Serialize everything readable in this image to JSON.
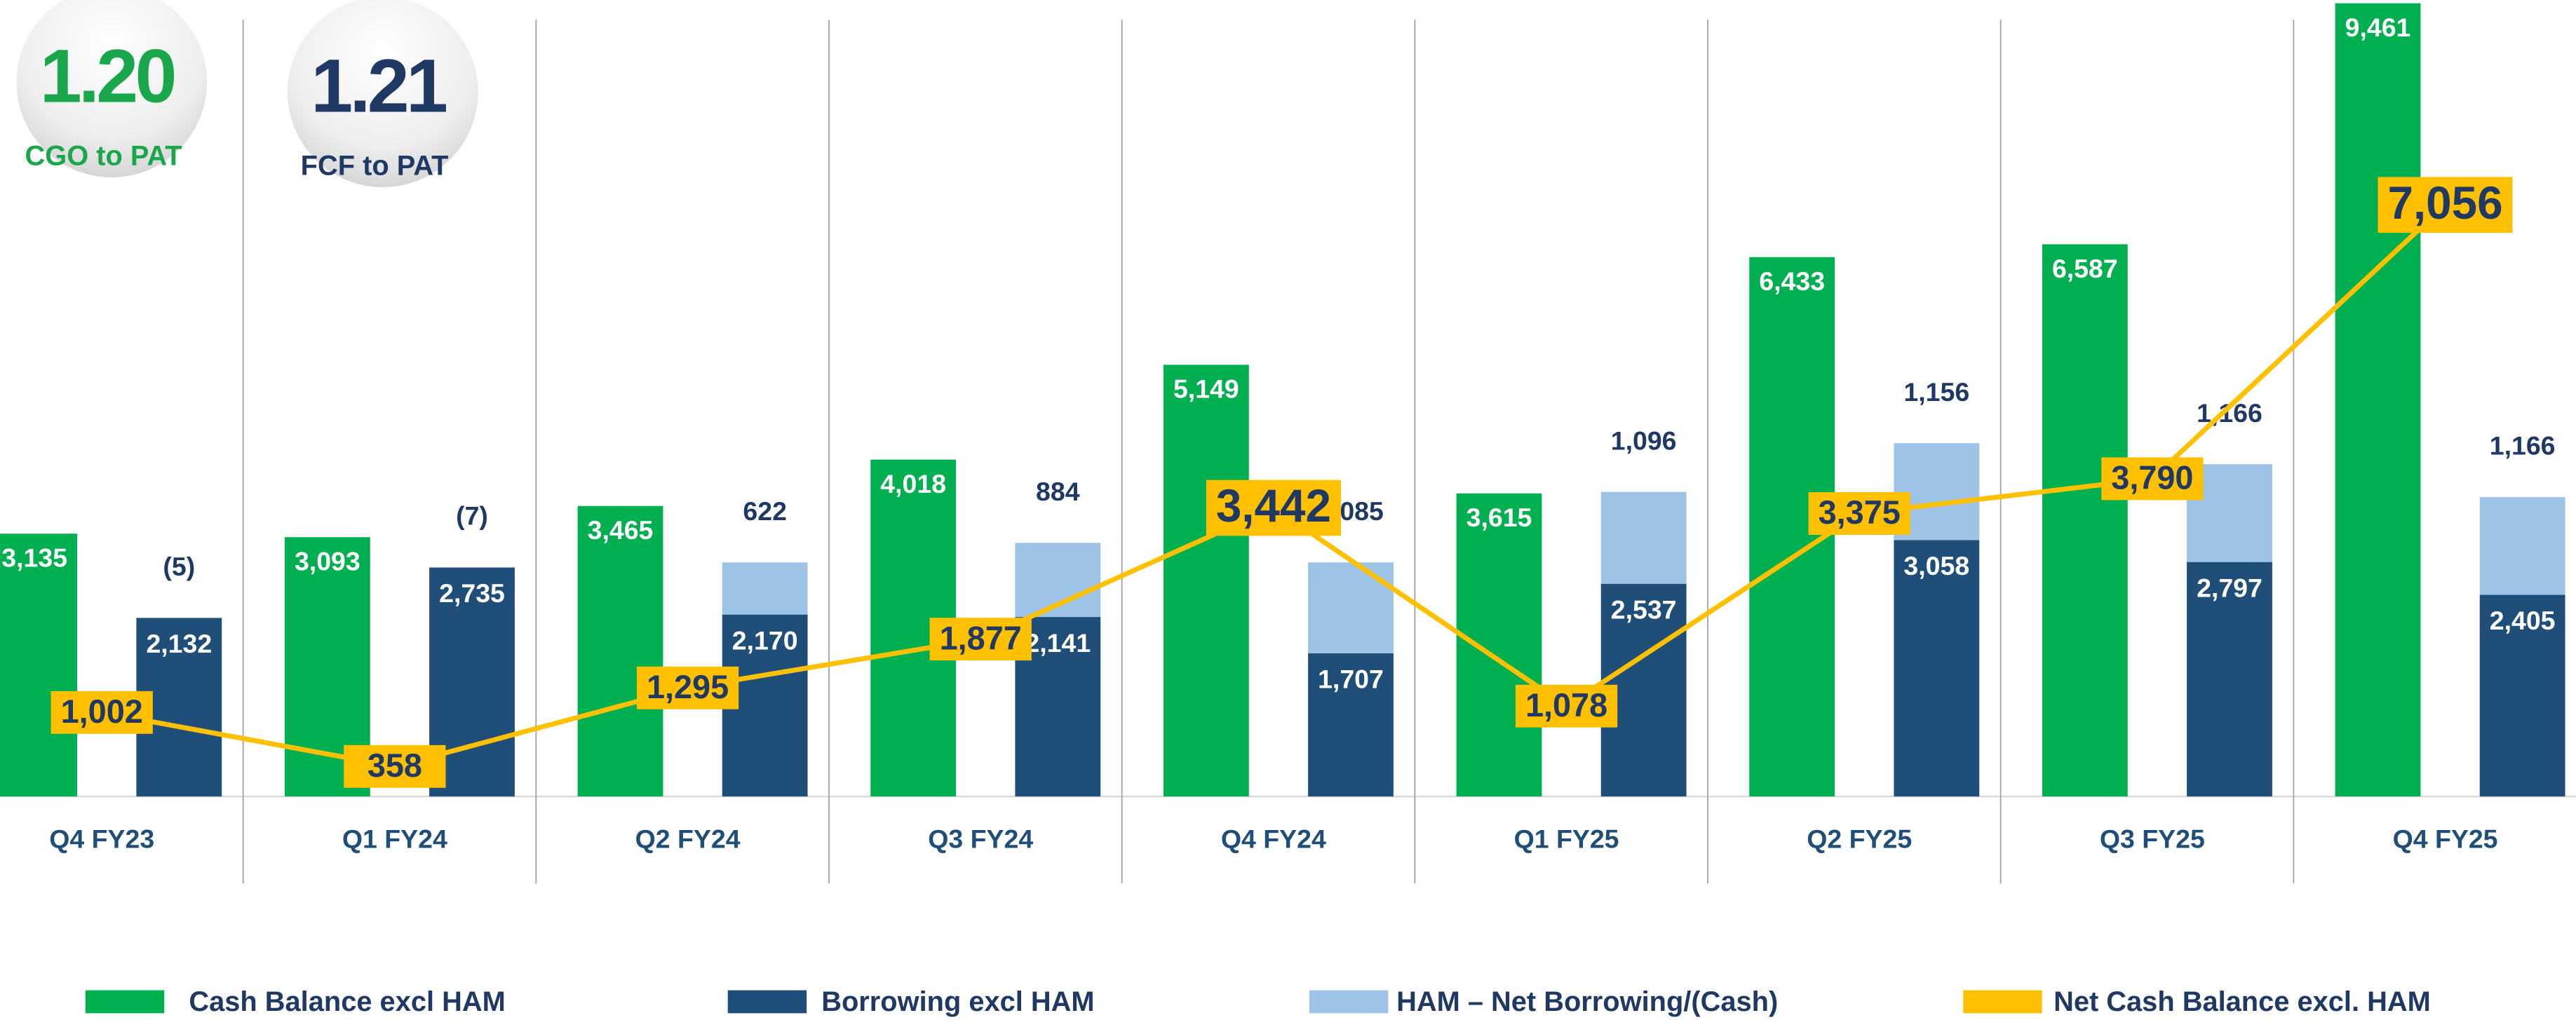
{
  "chart_data": {
    "type": "bar",
    "categories": [
      "Q4 FY23",
      "Q1 FY24",
      "Q2 FY24",
      "Q3 FY24",
      "Q4 FY24",
      "Q1 FY25",
      "Q2 FY25",
      "Q3 FY25",
      "Q4 FY25"
    ],
    "ylim": [
      0,
      9500
    ],
    "series": [
      {
        "name": "Cash Balance excl HAM",
        "type": "bar",
        "color": "#00b050",
        "values": [
          3135,
          3093,
          3465,
          4018,
          5149,
          3615,
          6433,
          6587,
          9461
        ],
        "value_labels": [
          "3,135",
          "3,093",
          "3,465",
          "4,018",
          "5,149",
          "3,615",
          "6,433",
          "6,587",
          "9,461"
        ]
      },
      {
        "name": "Borrowing excl HAM",
        "type": "bar",
        "color": "#1f4e79",
        "values": [
          2132,
          2735,
          2170,
          2141,
          1707,
          2537,
          3058,
          2797,
          2405
        ],
        "value_labels": [
          "2,132",
          "2,735",
          "2,170",
          "2,141",
          "1,707",
          "2,537",
          "3,058",
          "2,797",
          "2,405"
        ]
      },
      {
        "name": "HAM – Net Borrowing/(Cash)",
        "type": "bar",
        "color": "#9dc3e6",
        "values": [
          -5,
          -7,
          622,
          884,
          1085,
          1096,
          1156,
          1166,
          1166
        ],
        "value_labels": [
          "(5)",
          "(7)",
          "622",
          "884",
          "1,085",
          "1,096",
          "1,156",
          "1,166",
          "1,166"
        ]
      },
      {
        "name": "Net Cash Balance excl. HAM",
        "type": "line",
        "color": "#ffc000",
        "values": [
          1002,
          358,
          1295,
          1877,
          3442,
          1078,
          3375,
          3790,
          7056
        ],
        "value_labels": [
          "1,002",
          "358",
          "1,295",
          "1,877",
          "3,442",
          "1,078",
          "3,375",
          "3,790",
          "7,056"
        ]
      }
    ],
    "annotations": [
      {
        "value": "1.20",
        "text": "CGO to PAT",
        "color": "#1aa64a"
      },
      {
        "value": "1.21",
        "text": "FCF to PAT",
        "color": "#1f3864"
      }
    ]
  }
}
